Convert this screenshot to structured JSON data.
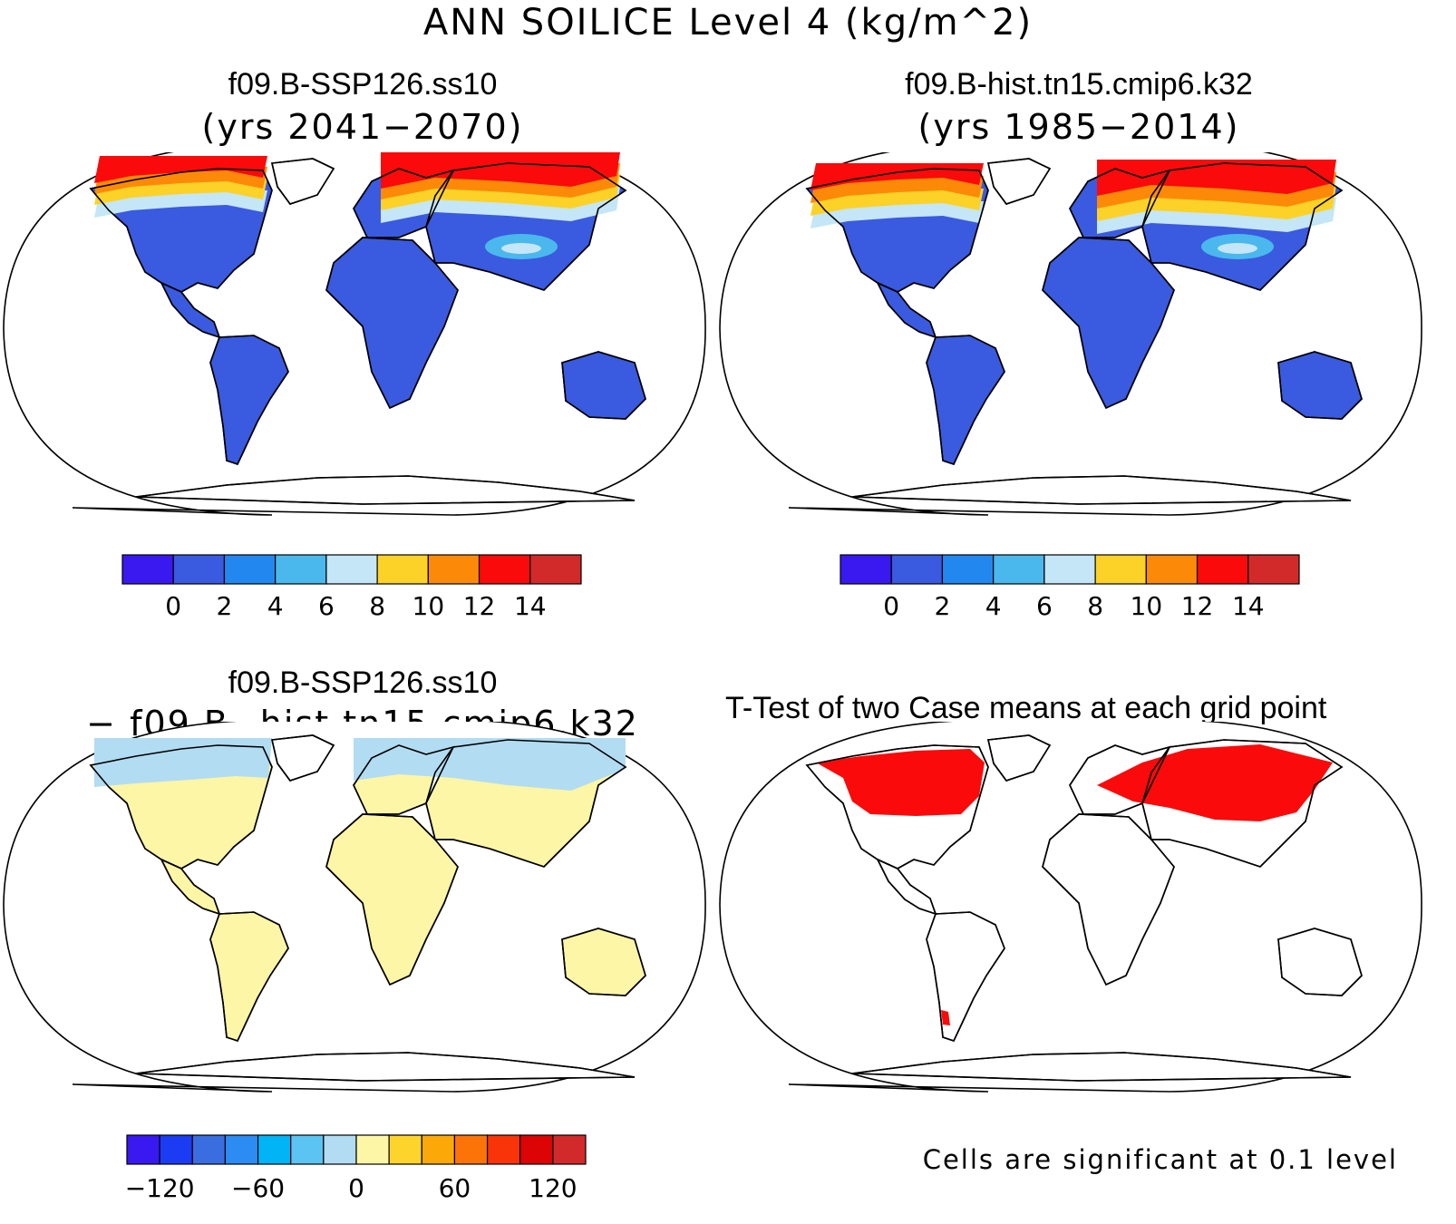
{
  "main_title": "ANN SOILICE Level 4 (kg/m^2)",
  "panels": {
    "top_left": {
      "title": "f09.B-SSP126.ss10",
      "subtitle": "(yrs 2041−2070)"
    },
    "top_right": {
      "title": "f09.B-hist.tn15.cmip6.k32",
      "subtitle": "(yrs 1985−2014)"
    },
    "bottom_left": {
      "title": "f09.B-SSP126.ss10",
      "subtitle": "− f09.B−hist.tn15.cmip6.k32"
    },
    "bottom_right": {
      "title": "T-Test of two Case means at each grid point"
    }
  },
  "colorbars": {
    "field": {
      "colors": [
        "#3a18f0",
        "#3a5ae0",
        "#2288f0",
        "#4ab8ec",
        "#c4e6f6",
        "#fcd228",
        "#fc8a08",
        "#fa0a0a",
        "#d22a2a"
      ],
      "labels": [
        "0",
        "2",
        "4",
        "6",
        "8",
        "10",
        "12",
        "14"
      ]
    },
    "diff": {
      "colors": [
        "#3a18f0",
        "#1c3cf4",
        "#3a6ee0",
        "#2c8cf4",
        "#00b4f6",
        "#5cc4f2",
        "#b2dcf2",
        "#fcf6a6",
        "#fcd42c",
        "#fca808",
        "#fc7408",
        "#f83408",
        "#dc0404",
        "#d22a2a"
      ],
      "labels": [
        "−120",
        "−60",
        "0",
        "60",
        "120"
      ]
    }
  },
  "significance_note": "Cells are significant at 0.1 level",
  "colors": {
    "land_low": "#3a5ae0",
    "diff_positive": "#fcf6a6",
    "diff_negative": "#b2dcf2",
    "significant": "#fa0a0a"
  }
}
